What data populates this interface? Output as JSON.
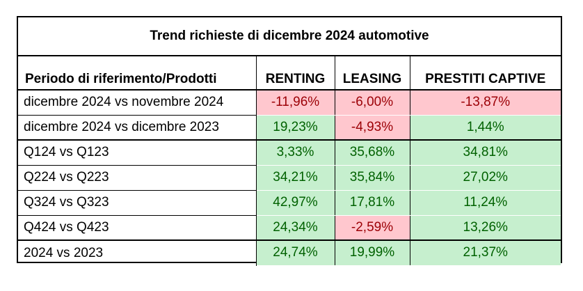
{
  "title": "Trend richieste di dicembre 2024 automotive",
  "table": {
    "headers": [
      "Periodo di riferimento/Prodotti",
      "RENTING",
      "LEASING",
      "PRESTITI CAPTIVE"
    ],
    "rows": [
      {
        "label": "dicembre 2024 vs novembre 2024",
        "renting": "-11,96%",
        "leasing": "-6,00%",
        "prestiti": "-13,87%"
      },
      {
        "label": "dicembre 2024 vs dicembre 2023",
        "renting": "19,23%",
        "leasing": "-4,93%",
        "prestiti": "1,44%"
      },
      {
        "label": "Q124 vs Q123",
        "renting": "3,33%",
        "leasing": "35,68%",
        "prestiti": "34,81%"
      },
      {
        "label": "Q224 vs Q223",
        "renting": "34,21%",
        "leasing": "35,84%",
        "prestiti": "27,02%"
      },
      {
        "label": "Q324 vs Q323",
        "renting": "42,97%",
        "leasing": "17,81%",
        "prestiti": "11,24%"
      },
      {
        "label": "Q424 vs Q423",
        "renting": "24,34%",
        "leasing": "-2,59%",
        "prestiti": "13,26%"
      },
      {
        "label": "2024 vs 2023",
        "renting": "24,74%",
        "leasing": "19,99%",
        "prestiti": "21,37%"
      }
    ]
  },
  "colors": {
    "positive_fill": "#c6efce",
    "positive_text": "#006100",
    "negative_fill": "#ffc7ce",
    "negative_text": "#9c0006"
  }
}
